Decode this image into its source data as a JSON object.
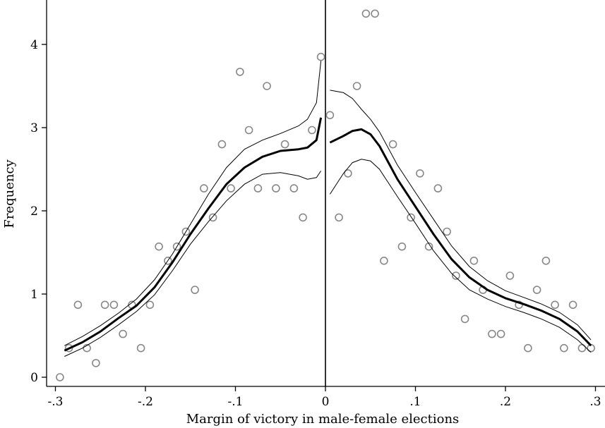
{
  "chart_data": {
    "type": "scatter",
    "xlabel": "Margin of victory in male-female elections",
    "ylabel": "Frequency",
    "xlim": [
      -0.3,
      0.3
    ],
    "ylim": [
      0,
      4.4
    ],
    "x_ticks": [
      -0.3,
      -0.2,
      -0.1,
      0,
      0.1,
      0.2,
      0.3
    ],
    "x_tick_labels": [
      "-.3",
      "-.2",
      "-.1",
      "0",
      ".1",
      ".2",
      ".3"
    ],
    "y_ticks": [
      0,
      1,
      2,
      3,
      4
    ],
    "y_tick_labels": [
      "0",
      "1",
      "2",
      "3",
      "4"
    ],
    "cutoff": 0,
    "grid": false,
    "colors": {
      "points": "#888888",
      "fit": "#000000",
      "axes": "#000000"
    },
    "scatter": {
      "x": [
        -0.295,
        -0.285,
        -0.275,
        -0.265,
        -0.255,
        -0.245,
        -0.235,
        -0.225,
        -0.215,
        -0.205,
        -0.195,
        -0.185,
        -0.175,
        -0.165,
        -0.155,
        -0.145,
        -0.135,
        -0.125,
        -0.115,
        -0.105,
        -0.095,
        -0.085,
        -0.075,
        -0.065,
        -0.055,
        -0.045,
        -0.035,
        -0.025,
        -0.015,
        -0.005,
        0.005,
        0.015,
        0.025,
        0.035,
        0.045,
        0.055,
        0.065,
        0.075,
        0.085,
        0.095,
        0.105,
        0.115,
        0.125,
        0.135,
        0.145,
        0.155,
        0.165,
        0.175,
        0.185,
        0.195,
        0.205,
        0.215,
        0.225,
        0.235,
        0.245,
        0.255,
        0.265,
        0.275,
        0.285,
        0.295
      ],
      "y": [
        0.0,
        0.35,
        0.87,
        0.35,
        0.17,
        0.87,
        0.87,
        0.52,
        0.87,
        0.35,
        0.87,
        1.57,
        1.4,
        1.57,
        1.75,
        1.05,
        2.27,
        1.92,
        2.8,
        2.27,
        3.67,
        2.97,
        2.27,
        3.5,
        2.27,
        2.8,
        2.27,
        1.92,
        2.97,
        3.85,
        3.15,
        1.92,
        2.45,
        3.5,
        4.37,
        4.37,
        1.4,
        2.8,
        1.57,
        1.92,
        2.45,
        1.57,
        2.27,
        1.75,
        1.22,
        0.7,
        1.4,
        1.05,
        0.52,
        0.52,
        1.22,
        0.87,
        0.35,
        1.05,
        1.4,
        0.87,
        0.35,
        0.87,
        0.35,
        0.35
      ]
    },
    "fit_left": {
      "x": [
        -0.29,
        -0.27,
        -0.25,
        -0.23,
        -0.21,
        -0.19,
        -0.17,
        -0.15,
        -0.13,
        -0.11,
        -0.09,
        -0.07,
        -0.05,
        -0.03,
        -0.02,
        -0.01,
        -0.005
      ],
      "fit": [
        0.32,
        0.42,
        0.55,
        0.71,
        0.86,
        1.08,
        1.38,
        1.72,
        2.03,
        2.32,
        2.52,
        2.65,
        2.72,
        2.74,
        2.76,
        2.85,
        3.12
      ],
      "upper": [
        0.38,
        0.49,
        0.62,
        0.77,
        0.94,
        1.17,
        1.48,
        1.84,
        2.2,
        2.52,
        2.74,
        2.85,
        2.93,
        3.02,
        3.1,
        3.3,
        3.8
      ],
      "lower": [
        0.25,
        0.35,
        0.48,
        0.63,
        0.79,
        0.99,
        1.28,
        1.6,
        1.87,
        2.12,
        2.32,
        2.44,
        2.46,
        2.42,
        2.38,
        2.4,
        2.48
      ]
    },
    "fit_right": {
      "x": [
        0.005,
        0.02,
        0.03,
        0.04,
        0.05,
        0.06,
        0.08,
        0.1,
        0.12,
        0.14,
        0.16,
        0.18,
        0.2,
        0.22,
        0.24,
        0.26,
        0.28,
        0.295
      ],
      "fit": [
        2.82,
        2.9,
        2.96,
        2.98,
        2.92,
        2.78,
        2.38,
        2.05,
        1.72,
        1.42,
        1.2,
        1.05,
        0.95,
        0.88,
        0.8,
        0.7,
        0.55,
        0.38
      ],
      "upper": [
        3.45,
        3.42,
        3.35,
        3.22,
        3.1,
        2.95,
        2.55,
        2.22,
        1.9,
        1.58,
        1.33,
        1.16,
        1.04,
        0.96,
        0.88,
        0.78,
        0.63,
        0.45
      ],
      "lower": [
        2.2,
        2.45,
        2.58,
        2.62,
        2.6,
        2.5,
        2.17,
        1.85,
        1.52,
        1.25,
        1.05,
        0.94,
        0.85,
        0.78,
        0.7,
        0.6,
        0.45,
        0.3
      ]
    }
  }
}
